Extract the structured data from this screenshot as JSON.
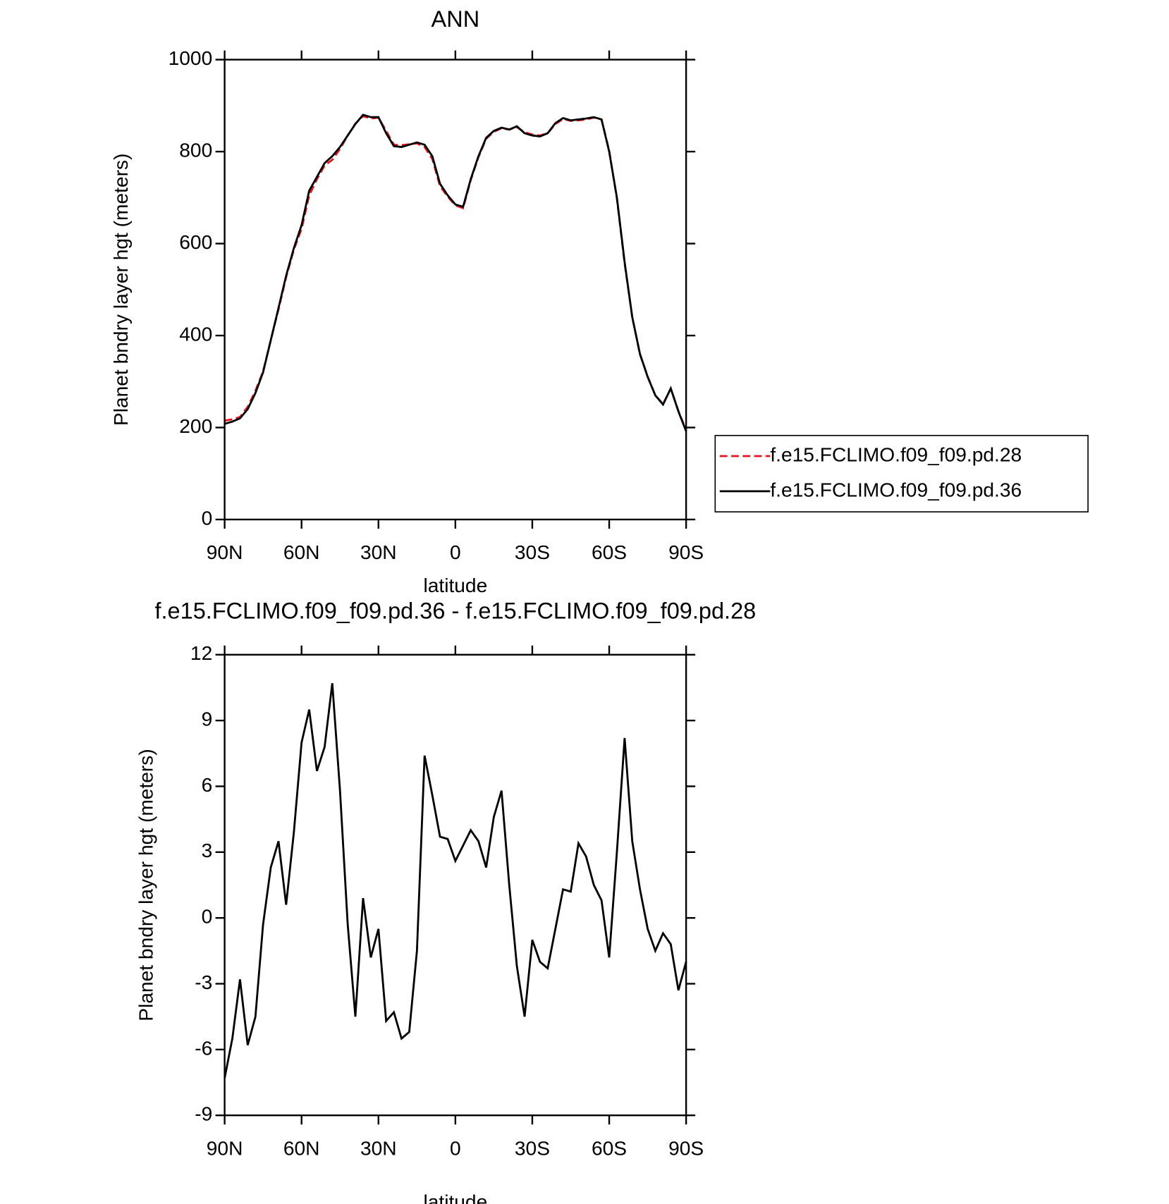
{
  "chart_data": [
    {
      "type": "line",
      "title": "ANN",
      "xlabel": "latitude",
      "ylabel": "Planet bndry layer hgt (meters)",
      "x": [
        90,
        87,
        84,
        81,
        78,
        75,
        72,
        69,
        66,
        63,
        60,
        57,
        54,
        51,
        48,
        45,
        42,
        39,
        36,
        33,
        30,
        27,
        24,
        21,
        18,
        15,
        12,
        9,
        6,
        3,
        0,
        -3,
        -6,
        -9,
        -12,
        -15,
        -18,
        -21,
        -24,
        -27,
        -30,
        -33,
        -36,
        -39,
        -42,
        -45,
        -48,
        -51,
        -54,
        -57,
        -60,
        -63,
        -66,
        -69,
        -72,
        -75,
        -78,
        -81,
        -84,
        -87,
        -90
      ],
      "series": [
        {
          "name": "f.e15.FCLIMO.f09_f09.pd.28",
          "color": "#e8141c",
          "linestyle": "dashed",
          "values": [
            215,
            218,
            223,
            245,
            280,
            322,
            390,
            457,
            527,
            587,
            632,
            705,
            740,
            770,
            782,
            806,
            835,
            861,
            877,
            872,
            874,
            845,
            815,
            814,
            816,
            818,
            810,
            784,
            725,
            702,
            683,
            677,
            738,
            788,
            828,
            843,
            851,
            848,
            853,
            842,
            837,
            835,
            840,
            860,
            871,
            867,
            868,
            870,
            874,
            870,
            802,
            698,
            557,
            440,
            359,
            311,
            270,
            251,
            285,
            236,
            194
          ]
        },
        {
          "name": "f.e15.FCLIMO.f09_f09.pd.36",
          "color": "#000000",
          "linestyle": "solid",
          "values": [
            208,
            213,
            220,
            240,
            275,
            320,
            390,
            460,
            530,
            590,
            640,
            715,
            745,
            775,
            790,
            810,
            835,
            860,
            880,
            875,
            875,
            840,
            812,
            810,
            815,
            820,
            815,
            790,
            730,
            705,
            685,
            680,
            740,
            790,
            830,
            845,
            852,
            848,
            855,
            840,
            835,
            833,
            840,
            862,
            873,
            868,
            870,
            872,
            875,
            870,
            800,
            700,
            560,
            440,
            360,
            310,
            270,
            250,
            285,
            235,
            192
          ]
        }
      ],
      "xlim": [
        90,
        -90
      ],
      "xticks": [
        {
          "value": 90,
          "label": "90N"
        },
        {
          "value": 60,
          "label": "60N"
        },
        {
          "value": 30,
          "label": "30N"
        },
        0,
        {
          "value": -30,
          "label": "30S"
        },
        {
          "value": -60,
          "label": "60S"
        },
        {
          "value": -90,
          "label": "90S"
        }
      ],
      "ylim": [
        0,
        1000
      ],
      "yticks": [
        0,
        200,
        400,
        600,
        800,
        1000
      ],
      "legend": "right"
    },
    {
      "type": "line",
      "title": "f.e15.FCLIMO.f09_f09.pd.36 - f.e15.FCLIMO.f09_f09.pd.28",
      "xlabel": "latitude",
      "ylabel": "Planet bndry layer hgt (meters)",
      "x": [
        90,
        87,
        84,
        81,
        78,
        75,
        72,
        69,
        66,
        63,
        60,
        57,
        54,
        51,
        48,
        45,
        42,
        39,
        36,
        33,
        30,
        27,
        24,
        21,
        18,
        15,
        12,
        9,
        6,
        3,
        0,
        -3,
        -6,
        -9,
        -12,
        -15,
        -18,
        -21,
        -24,
        -27,
        -30,
        -33,
        -36,
        -39,
        -42,
        -45,
        -48,
        -51,
        -54,
        -57,
        -60,
        -63,
        -66,
        -69,
        -72,
        -75,
        -78,
        -81,
        -84,
        -87,
        -90
      ],
      "color": "#000000",
      "linestyle": "solid",
      "values": [
        -7.3,
        -5.5,
        -2.8,
        -5.8,
        -4.5,
        -0.3,
        2.3,
        3.5,
        0.6,
        3.9,
        8.0,
        9.5,
        6.7,
        7.8,
        10.7,
        5.8,
        -0.3,
        -4.5,
        0.9,
        -1.8,
        -0.5,
        -4.7,
        -4.3,
        -5.5,
        -5.2,
        -1.5,
        7.4,
        5.6,
        3.7,
        3.6,
        2.6,
        3.3,
        4.0,
        3.5,
        2.3,
        4.6,
        5.8,
        1.5,
        -2.2,
        -4.5,
        -1.0,
        -2.0,
        -2.3,
        -0.5,
        1.3,
        1.2,
        3.4,
        2.8,
        1.5,
        0.8,
        -1.8,
        3.0,
        8.2,
        3.5,
        1.3,
        -0.5,
        -1.5,
        -0.7,
        -1.2,
        -3.3,
        -2.0
      ],
      "xlim": [
        90,
        -90
      ],
      "xticks": [
        {
          "value": 90,
          "label": "90N"
        },
        {
          "value": 60,
          "label": "60N"
        },
        {
          "value": 30,
          "label": "30N"
        },
        0,
        {
          "value": -30,
          "label": "30S"
        },
        {
          "value": -60,
          "label": "60S"
        },
        {
          "value": -90,
          "label": "90S"
        }
      ],
      "ylim": [
        -9,
        12
      ],
      "yticks": [
        -9,
        -6,
        -3,
        0,
        3,
        6,
        9,
        12
      ]
    }
  ]
}
